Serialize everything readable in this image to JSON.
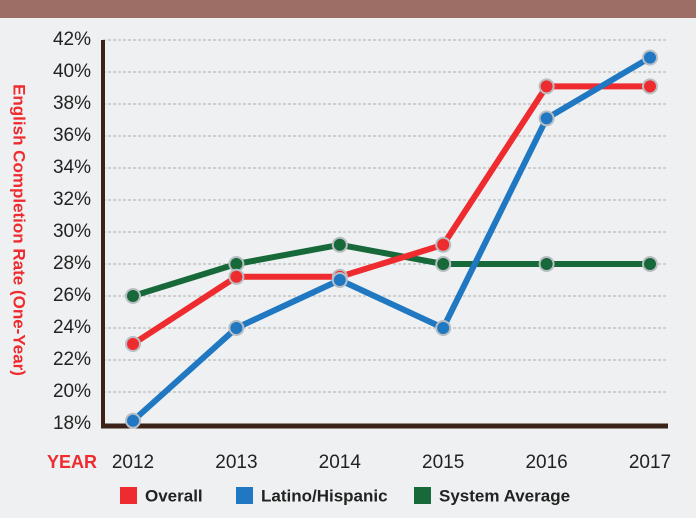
{
  "chart_data": {
    "type": "line",
    "y_axis_label": "English Completion Rate (One-Year)",
    "x_axis_label": "YEAR",
    "categories": [
      "2012",
      "2013",
      "2014",
      "2015",
      "2016",
      "2017"
    ],
    "series": [
      {
        "name": "Overall",
        "color": "#ee2b2e",
        "values": [
          23,
          27.2,
          27.2,
          29.2,
          39.1,
          39.1
        ]
      },
      {
        "name": "Latino/Hispanic",
        "color": "#1f78c1",
        "values": [
          18.2,
          24,
          27,
          24,
          37.1,
          40.9
        ]
      },
      {
        "name": "System Average",
        "color": "#17693a",
        "values": [
          26,
          28,
          29.2,
          28,
          28,
          28
        ]
      }
    ],
    "ylim": [
      18,
      42
    ],
    "yticks": [
      {
        "value": 18,
        "label": "18%"
      },
      {
        "value": 20,
        "label": "20%"
      },
      {
        "value": 22,
        "label": "22%"
      },
      {
        "value": 24,
        "label": "24%"
      },
      {
        "value": 26,
        "label": "26%"
      },
      {
        "value": 28,
        "label": "28%"
      },
      {
        "value": 30,
        "label": "30%"
      },
      {
        "value": 32,
        "label": "32%"
      },
      {
        "value": 34,
        "label": "34%"
      },
      {
        "value": 36,
        "label": "36%"
      },
      {
        "value": 38,
        "label": "38%"
      },
      {
        "value": 40,
        "label": "40%"
      },
      {
        "value": 42,
        "label": "42%"
      }
    ],
    "grid": true
  }
}
